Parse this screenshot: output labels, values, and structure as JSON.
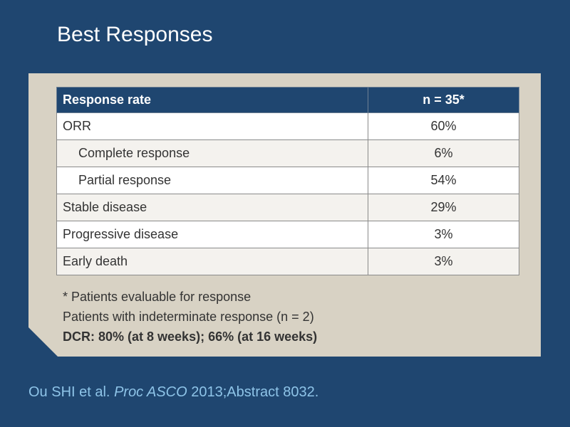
{
  "slide": {
    "title": "Best Responses"
  },
  "table": {
    "headers": [
      "Response rate",
      "n = 35*"
    ],
    "rows": [
      {
        "label": "ORR",
        "value": "60%"
      },
      {
        "label": "Complete response",
        "value": "6%"
      },
      {
        "label": "Partial response",
        "value": "54%"
      },
      {
        "label": "Stable disease",
        "value": "29%"
      },
      {
        "label": "Progressive disease",
        "value": "3%"
      },
      {
        "label": "Early death",
        "value": "3%"
      }
    ]
  },
  "notes": {
    "footnote": "* Patients evaluable for response",
    "indeterminate": "Patients with indeterminate response (n = 2)",
    "dcr": "DCR: 80% (at 8 weeks); 66% (at 16 weeks)"
  },
  "citation": {
    "authors": "Ou SHI et al. ",
    "journal": "Proc ASCO",
    "details": " 2013;Abstract 8032."
  },
  "colors": {
    "background": "#1f4670",
    "panel": "#d8d2c4",
    "citation": "#8ec4e8"
  }
}
